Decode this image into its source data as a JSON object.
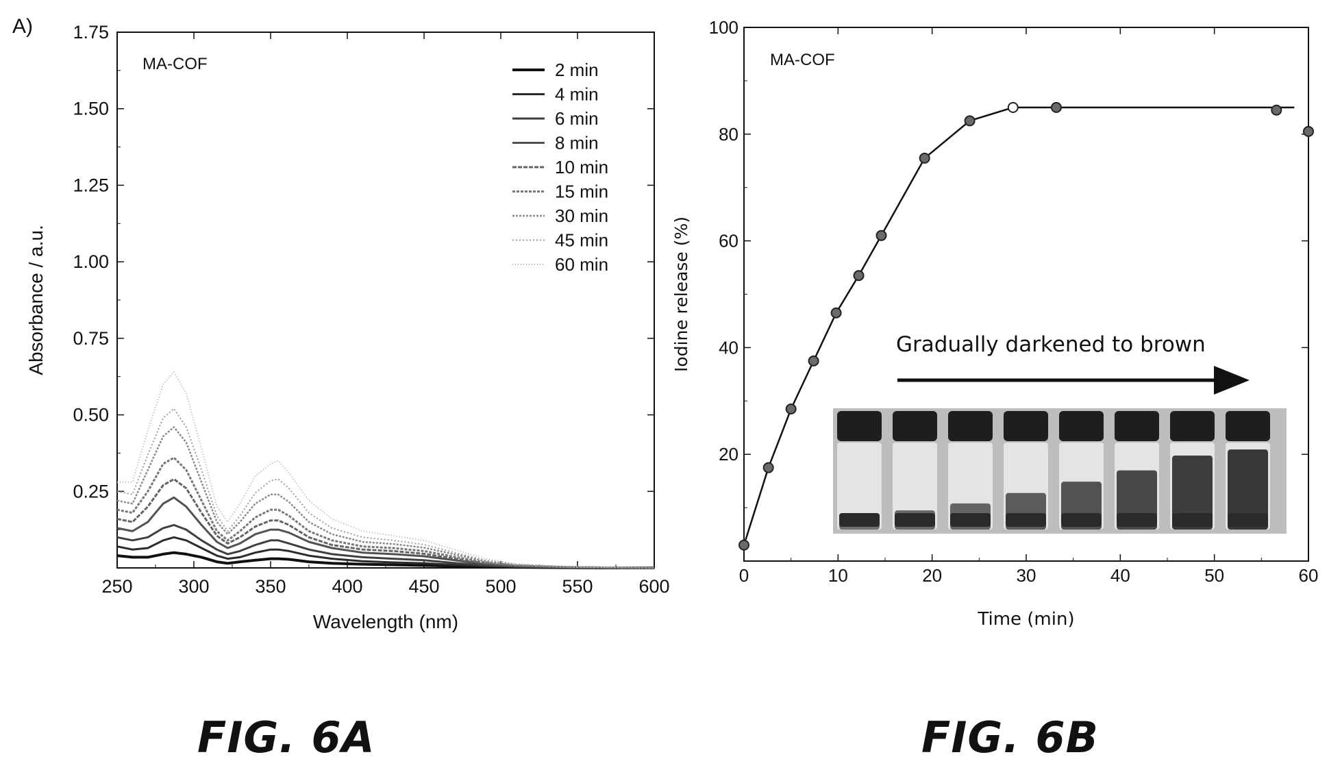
{
  "panel_letter": "A)",
  "captions": {
    "a": "FIG. 6A",
    "b": "FIG. 6B"
  },
  "chart_data": [
    {
      "type": "line",
      "annotation": "MA-COF",
      "xlabel": "Wavelength (nm)",
      "ylabel": "Absorbance / a.u.",
      "xlim": [
        250,
        600
      ],
      "ylim": [
        0,
        1.75
      ],
      "x_ticks": [
        250,
        300,
        350,
        400,
        450,
        500,
        550,
        600
      ],
      "y_ticks": [
        0.25,
        0.5,
        0.75,
        1.0,
        1.25,
        1.5,
        1.75
      ],
      "y_tick_labels": [
        "0.25",
        "0.50",
        "0.75",
        "1.00",
        "1.25",
        "1.50",
        "1.75"
      ],
      "legend_position": "top-right",
      "x": [
        250,
        260,
        270,
        280,
        287,
        295,
        305,
        315,
        322,
        330,
        340,
        350,
        355,
        362,
        375,
        390,
        410,
        430,
        450,
        470,
        490,
        510,
        540,
        570,
        600
      ],
      "series": [
        {
          "name": "2 min",
          "values": [
            0.04,
            0.035,
            0.035,
            0.045,
            0.05,
            0.045,
            0.035,
            0.02,
            0.015,
            0.02,
            0.025,
            0.03,
            0.03,
            0.028,
            0.02,
            0.015,
            0.012,
            0.01,
            0.008,
            0.006,
            0.004,
            0.002,
            0.001,
            0.0,
            0.0
          ]
        },
        {
          "name": "4 min",
          "values": [
            0.07,
            0.06,
            0.065,
            0.09,
            0.1,
            0.09,
            0.065,
            0.04,
            0.03,
            0.035,
            0.05,
            0.06,
            0.06,
            0.055,
            0.04,
            0.03,
            0.022,
            0.018,
            0.015,
            0.01,
            0.006,
            0.004,
            0.002,
            0.001,
            0.0
          ]
        },
        {
          "name": "6 min",
          "values": [
            0.1,
            0.09,
            0.1,
            0.13,
            0.14,
            0.125,
            0.09,
            0.06,
            0.045,
            0.055,
            0.075,
            0.09,
            0.09,
            0.08,
            0.06,
            0.045,
            0.035,
            0.03,
            0.025,
            0.016,
            0.008,
            0.004,
            0.002,
            0.001,
            0.0
          ]
        },
        {
          "name": "8 min",
          "values": [
            0.13,
            0.12,
            0.15,
            0.21,
            0.23,
            0.2,
            0.14,
            0.085,
            0.065,
            0.08,
            0.11,
            0.125,
            0.125,
            0.115,
            0.085,
            0.065,
            0.05,
            0.045,
            0.038,
            0.025,
            0.012,
            0.006,
            0.003,
            0.001,
            0.0
          ]
        },
        {
          "name": "10 min",
          "values": [
            0.16,
            0.15,
            0.2,
            0.27,
            0.29,
            0.26,
            0.18,
            0.105,
            0.08,
            0.1,
            0.135,
            0.155,
            0.155,
            0.14,
            0.1,
            0.075,
            0.06,
            0.055,
            0.046,
            0.03,
            0.015,
            0.007,
            0.003,
            0.001,
            0.0
          ]
        },
        {
          "name": "15 min",
          "values": [
            0.19,
            0.18,
            0.25,
            0.34,
            0.36,
            0.32,
            0.22,
            0.12,
            0.09,
            0.12,
            0.165,
            0.19,
            0.19,
            0.17,
            0.12,
            0.09,
            0.07,
            0.065,
            0.055,
            0.036,
            0.018,
            0.008,
            0.003,
            0.001,
            0.0
          ]
        },
        {
          "name": "30 min",
          "values": [
            0.22,
            0.21,
            0.32,
            0.43,
            0.46,
            0.41,
            0.28,
            0.15,
            0.11,
            0.15,
            0.21,
            0.24,
            0.24,
            0.215,
            0.15,
            0.11,
            0.085,
            0.078,
            0.066,
            0.044,
            0.022,
            0.01,
            0.004,
            0.001,
            0.0
          ]
        },
        {
          "name": "45 min",
          "values": [
            0.25,
            0.24,
            0.37,
            0.49,
            0.52,
            0.46,
            0.32,
            0.17,
            0.12,
            0.17,
            0.245,
            0.285,
            0.29,
            0.26,
            0.18,
            0.13,
            0.1,
            0.09,
            0.076,
            0.05,
            0.025,
            0.011,
            0.004,
            0.001,
            0.0
          ]
        },
        {
          "name": "60 min",
          "values": [
            0.28,
            0.28,
            0.45,
            0.6,
            0.64,
            0.57,
            0.39,
            0.2,
            0.15,
            0.21,
            0.3,
            0.34,
            0.35,
            0.31,
            0.22,
            0.16,
            0.12,
            0.105,
            0.09,
            0.06,
            0.03,
            0.013,
            0.005,
            0.002,
            0.0
          ]
        }
      ],
      "series_colors": [
        "#111111",
        "#2b2b2b",
        "#3f3f3f",
        "#525252",
        "#646464",
        "#777777",
        "#8a8a8a",
        "#9c9c9c",
        "#aeaeae"
      ],
      "grid": false
    },
    {
      "type": "line",
      "annotation": "MA-COF",
      "xlabel": "Time (min)",
      "ylabel": "Iodine release (%)",
      "xlim": [
        0,
        60
      ],
      "ylim": [
        0,
        100
      ],
      "x_ticks": [
        0,
        10,
        20,
        30,
        40,
        50,
        60
      ],
      "y_ticks": [
        20,
        40,
        60,
        80,
        100
      ],
      "x": [
        0,
        2.6,
        5,
        7.4,
        9.8,
        12.2,
        14.6,
        19.2,
        24,
        28.6,
        33.2,
        56.6,
        60
      ],
      "values": [
        3,
        17.5,
        28.5,
        37.5,
        46.5,
        53.5,
        61,
        75.5,
        82.5,
        85,
        85,
        84.5,
        80.5
      ],
      "fit_line": {
        "x": [
          0,
          2.6,
          5,
          7.4,
          9.8,
          12.2,
          14.6,
          19.2,
          24,
          28.6,
          58.5
        ],
        "y": [
          3,
          17.5,
          28.5,
          37.5,
          46.5,
          53.5,
          61,
          75.5,
          82.5,
          85,
          85
        ]
      },
      "inset": {
        "text": "Gradually darkened to brown",
        "vial_count": 8,
        "vial_liquid_fraction": [
          0.12,
          0.22,
          0.3,
          0.42,
          0.55,
          0.68,
          0.85,
          0.92
        ]
      },
      "grid": false
    }
  ]
}
